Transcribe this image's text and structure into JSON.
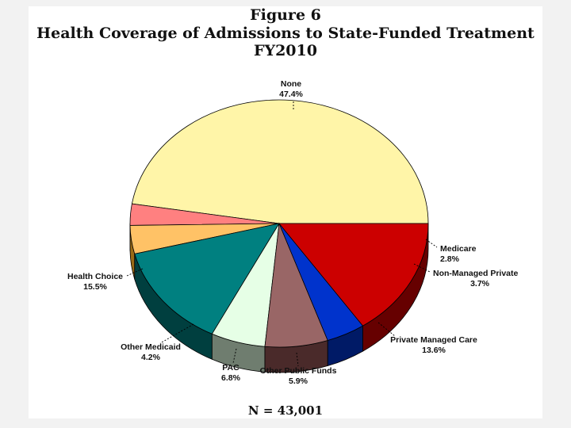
{
  "chart_data": {
    "type": "pie",
    "title": [
      "Figure 6",
      "Health Coverage of Admissions to State-Funded Treatment",
      "FY2010"
    ],
    "slices": [
      {
        "name": "None",
        "value": 47.4,
        "label": "47.4%",
        "color": "#FFF5A8",
        "side": "#c8bd63"
      },
      {
        "name": "Medicare",
        "value": 2.8,
        "label": "2.8%",
        "color": "#FF8080",
        "side": "#a83535"
      },
      {
        "name": "Non-Managed Private",
        "value": 3.7,
        "label": "3.7%",
        "color": "#FFC266",
        "side": "#9a6a16"
      },
      {
        "name": "Private Managed Care",
        "value": 13.6,
        "label": "13.6%",
        "color": "#008080",
        "side": "#003f3f"
      },
      {
        "name": "Other Public Funds",
        "value": 5.9,
        "label": "5.9%",
        "color": "#E6FFE6",
        "side": "#6f7d6f"
      },
      {
        "name": "PAC",
        "value": 6.8,
        "label": "6.8%",
        "color": "#996666",
        "side": "#4a2a2a"
      },
      {
        "name": "Other Medicaid",
        "value": 4.2,
        "label": "4.2%",
        "color": "#0033CC",
        "side": "#001a66"
      },
      {
        "name": "Health Choice",
        "value": 15.5,
        "label": "15.5%",
        "color": "#CC0000",
        "side": "#660000"
      }
    ],
    "footer": "N = 43,001"
  }
}
